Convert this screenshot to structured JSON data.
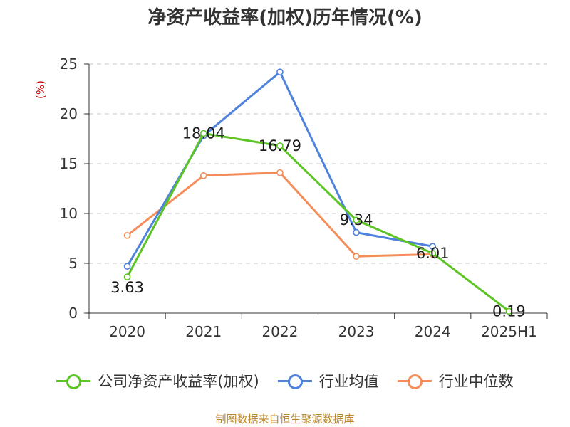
{
  "title": "净资产收益率(加权)历年情况(%)",
  "source": "制图数据来自恒生聚源数据库",
  "colors": {
    "company": "#5cc424",
    "industry_avg": "#4f82dc",
    "industry_median": "#f58d5b",
    "grid": "#c8c8c8",
    "axis": "#333333",
    "unit_label": "#cc0000"
  },
  "legend": {
    "company": "公司净资产收益率(加权)",
    "industry_avg": "行业均值",
    "industry_median": "行业中位数"
  },
  "chart_data": {
    "type": "line",
    "title": "净资产收益率(加权)历年情况(%)",
    "ylabel": "(%)",
    "xlabel": "",
    "categories": [
      "2020",
      "2021",
      "2022",
      "2023",
      "2024",
      "2025H1"
    ],
    "ylim": [
      0,
      25
    ],
    "yticks": [
      0,
      5,
      10,
      15,
      20,
      25
    ],
    "grid": true,
    "legend_position": "bottom",
    "series": [
      {
        "key": "company",
        "name": "公司净资产收益率(加权)",
        "values": [
          3.63,
          18.04,
          16.79,
          9.34,
          6.01,
          0.19
        ],
        "labels": [
          "3.63",
          "18.04",
          "16.79",
          "9.34",
          "6.01",
          "0.19"
        ]
      },
      {
        "key": "industry_avg",
        "name": "行业均值",
        "values": [
          4.7,
          17.8,
          24.2,
          8.1,
          6.7,
          null
        ]
      },
      {
        "key": "industry_median",
        "name": "行业中位数",
        "values": [
          7.8,
          13.8,
          14.1,
          5.7,
          5.9,
          null
        ]
      }
    ]
  }
}
